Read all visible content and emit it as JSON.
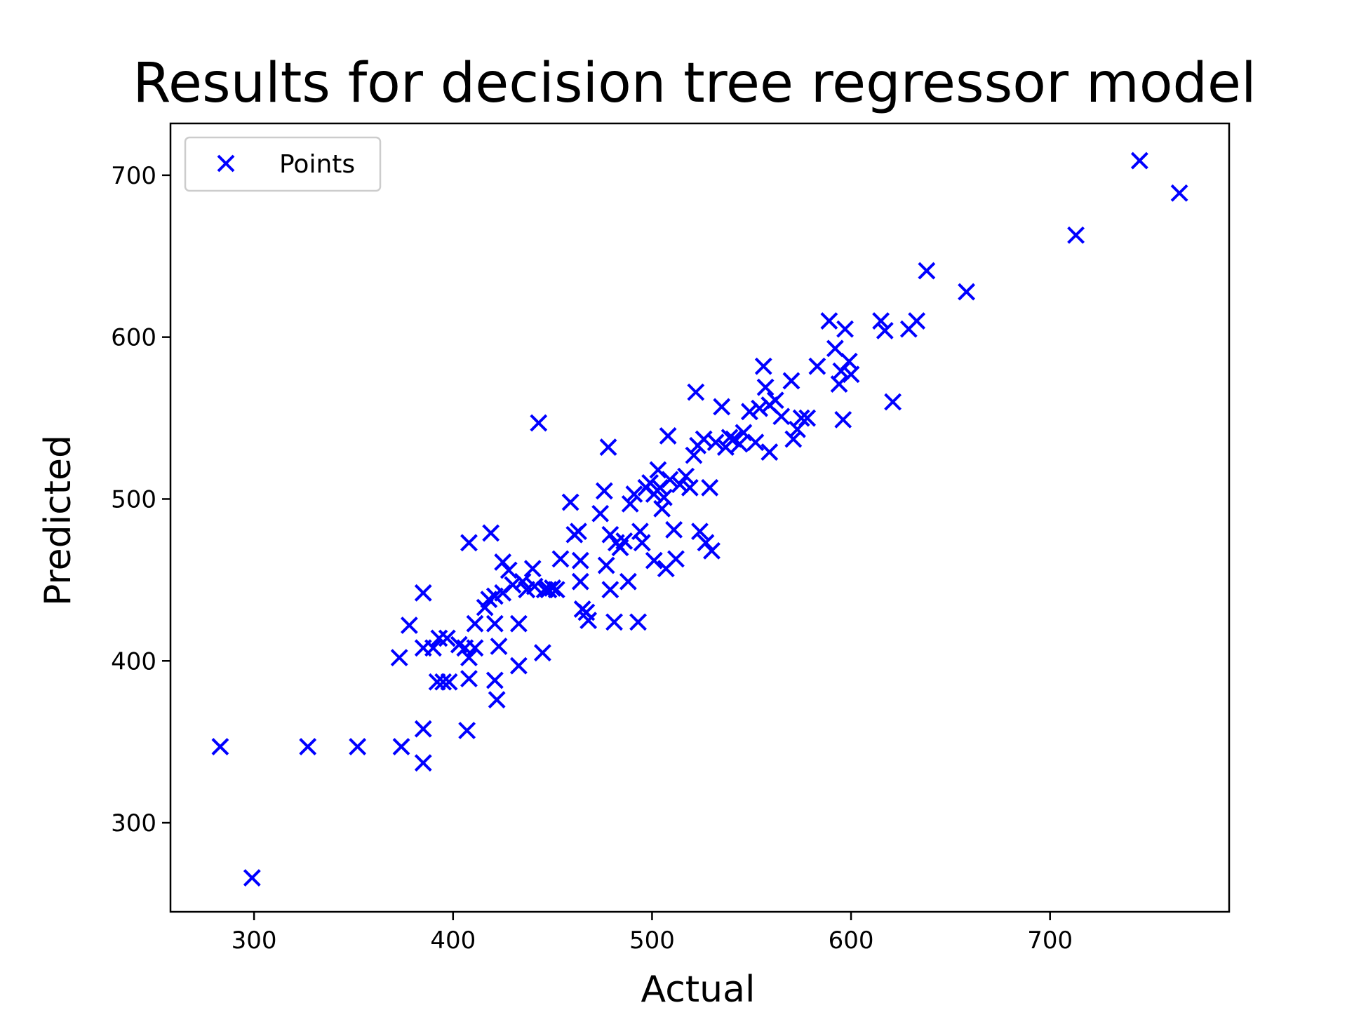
{
  "chart_data": {
    "type": "scatter",
    "title": "Results for decision tree regressor model",
    "xlabel": "Actual",
    "ylabel": "Predicted",
    "xlim": [
      258,
      790
    ],
    "ylim": [
      245,
      732
    ],
    "xticks": [
      300,
      400,
      500,
      600,
      700
    ],
    "yticks": [
      300,
      400,
      500,
      600,
      700
    ],
    "grid": false,
    "legend_position": "top-left",
    "marker": "x",
    "color": "#0000ff",
    "series": [
      {
        "name": "Points",
        "points": [
          [
            283,
            347
          ],
          [
            299,
            266
          ],
          [
            327,
            347
          ],
          [
            352,
            347
          ],
          [
            374,
            347
          ],
          [
            385,
            337
          ],
          [
            385,
            358
          ],
          [
            385,
            442
          ],
          [
            378,
            422
          ],
          [
            373,
            402
          ],
          [
            385,
            408
          ],
          [
            390,
            408
          ],
          [
            393,
            414
          ],
          [
            397,
            414
          ],
          [
            392,
            387
          ],
          [
            395,
            387
          ],
          [
            398,
            387
          ],
          [
            408,
            389
          ],
          [
            407,
            357
          ],
          [
            403,
            410
          ],
          [
            406,
            408
          ],
          [
            408,
            402
          ],
          [
            411,
            408
          ],
          [
            411,
            423
          ],
          [
            408,
            473
          ],
          [
            416,
            433
          ],
          [
            418,
            438
          ],
          [
            421,
            440
          ],
          [
            419,
            479
          ],
          [
            421,
            423
          ],
          [
            423,
            409
          ],
          [
            421,
            388
          ],
          [
            422,
            376
          ],
          [
            425,
            461
          ],
          [
            425,
            442
          ],
          [
            428,
            456
          ],
          [
            430,
            447
          ],
          [
            433,
            423
          ],
          [
            433,
            397
          ],
          [
            435,
            449
          ],
          [
            437,
            444
          ],
          [
            440,
            457
          ],
          [
            441,
            446
          ],
          [
            443,
            547
          ],
          [
            445,
            405
          ],
          [
            446,
            444
          ],
          [
            448,
            444
          ],
          [
            450,
            445
          ],
          [
            452,
            444
          ],
          [
            454,
            463
          ],
          [
            459,
            498
          ],
          [
            461,
            478
          ],
          [
            463,
            480
          ],
          [
            464,
            462
          ],
          [
            464,
            449
          ],
          [
            465,
            432
          ],
          [
            467,
            430
          ],
          [
            468,
            425
          ],
          [
            474,
            491
          ],
          [
            476,
            505
          ],
          [
            478,
            532
          ],
          [
            477,
            459
          ],
          [
            479,
            478
          ],
          [
            479,
            444
          ],
          [
            481,
            424
          ],
          [
            482,
            473
          ],
          [
            484,
            470
          ],
          [
            486,
            474
          ],
          [
            488,
            449
          ],
          [
            489,
            497
          ],
          [
            491,
            503
          ],
          [
            493,
            424
          ],
          [
            494,
            480
          ],
          [
            495,
            473
          ],
          [
            497,
            507
          ],
          [
            499,
            510
          ],
          [
            501,
            503
          ],
          [
            501,
            462
          ],
          [
            503,
            518
          ],
          [
            504,
            507
          ],
          [
            505,
            494
          ],
          [
            506,
            501
          ],
          [
            507,
            457
          ],
          [
            508,
            539
          ],
          [
            509,
            512
          ],
          [
            511,
            481
          ],
          [
            512,
            463
          ],
          [
            514,
            509
          ],
          [
            517,
            514
          ],
          [
            519,
            507
          ],
          [
            521,
            527
          ],
          [
            522,
            566
          ],
          [
            523,
            533
          ],
          [
            524,
            480
          ],
          [
            526,
            537
          ],
          [
            527,
            473
          ],
          [
            529,
            507
          ],
          [
            530,
            468
          ],
          [
            532,
            535
          ],
          [
            535,
            557
          ],
          [
            537,
            532
          ],
          [
            539,
            538
          ],
          [
            541,
            537
          ],
          [
            544,
            534
          ],
          [
            546,
            541
          ],
          [
            549,
            554
          ],
          [
            552,
            535
          ],
          [
            554,
            556
          ],
          [
            556,
            582
          ],
          [
            557,
            569
          ],
          [
            559,
            529
          ],
          [
            559,
            558
          ],
          [
            562,
            561
          ],
          [
            565,
            551
          ],
          [
            570,
            573
          ],
          [
            571,
            537
          ],
          [
            573,
            543
          ],
          [
            575,
            550
          ],
          [
            578,
            550
          ],
          [
            583,
            582
          ],
          [
            589,
            610
          ],
          [
            592,
            593
          ],
          [
            594,
            571
          ],
          [
            595,
            579
          ],
          [
            596,
            549
          ],
          [
            597,
            605
          ],
          [
            599,
            585
          ],
          [
            600,
            577
          ],
          [
            615,
            610
          ],
          [
            617,
            604
          ],
          [
            621,
            560
          ],
          [
            629,
            605
          ],
          [
            633,
            610
          ],
          [
            638,
            641
          ],
          [
            658,
            628
          ],
          [
            713,
            663
          ],
          [
            745,
            709
          ],
          [
            765,
            689
          ]
        ]
      }
    ]
  }
}
